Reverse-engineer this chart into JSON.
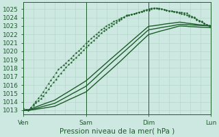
{
  "bg_color": "#cde8e0",
  "grid_color": "#b0d4c8",
  "line_color": "#1a5c28",
  "xlabel": "Pression niveau de la mer( hPa )",
  "xtick_labels": [
    "Ven",
    "Sam",
    "Dim",
    "Lun"
  ],
  "xtick_positions": [
    0.0,
    1.0,
    2.0,
    3.0
  ],
  "ylim": [
    1012.5,
    1025.8
  ],
  "yticks": [
    1013,
    1014,
    1015,
    1016,
    1017,
    1018,
    1019,
    1020,
    1021,
    1022,
    1023,
    1024,
    1025
  ],
  "x_total": 3.0,
  "tick_fontsize": 6.5,
  "label_fontsize": 7.5,
  "noise_seed": 42
}
